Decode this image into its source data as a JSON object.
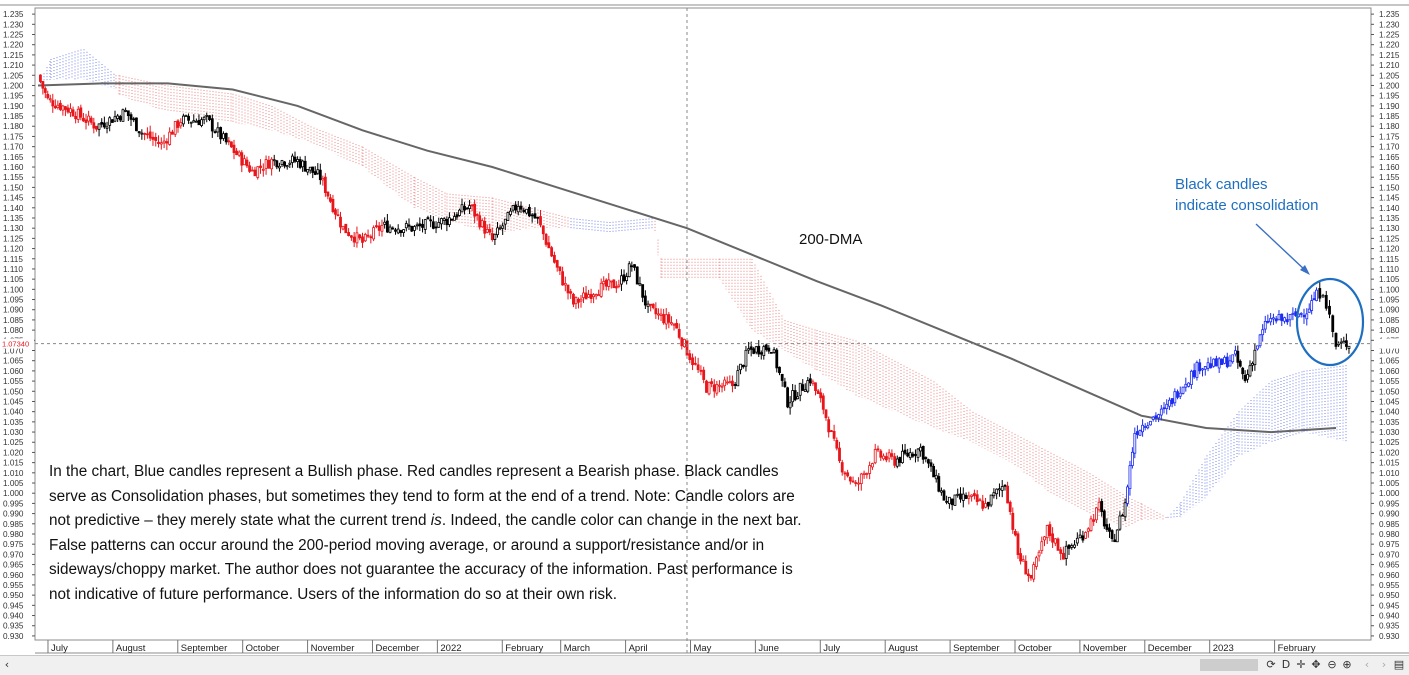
{
  "chart_data": {
    "type": "candlestick",
    "instrument_hint": "EUR/USD daily",
    "y_axis": {
      "ylim": [
        0.928,
        1.238
      ],
      "ticks": [
        "1.235",
        "1.230",
        "1.225",
        "1.220",
        "1.215",
        "1.210",
        "1.205",
        "1.200",
        "1.195",
        "1.190",
        "1.185",
        "1.180",
        "1.175",
        "1.170",
        "1.165",
        "1.160",
        "1.155",
        "1.150",
        "1.145",
        "1.140",
        "1.135",
        "1.130",
        "1.125",
        "1.120",
        "1.115",
        "1.110",
        "1.105",
        "1.100",
        "1.095",
        "1.090",
        "1.085",
        "1.080",
        "1.075",
        "1.070",
        "1.065",
        "1.060",
        "1.055",
        "1.050",
        "1.045",
        "1.040",
        "1.035",
        "1.030",
        "1.025",
        "1.020",
        "1.015",
        "1.010",
        "1.005",
        "1.000",
        "0.995",
        "0.990",
        "0.985",
        "0.980",
        "0.975",
        "0.970",
        "0.965",
        "0.960",
        "0.955",
        "0.950",
        "0.945",
        "0.940",
        "0.935",
        "0.930"
      ]
    },
    "current_price_label": "1.07340",
    "current_price": 1.0734,
    "x_axis": {
      "range_months": [
        0,
        20
      ],
      "labels": [
        {
          "text": "July",
          "m": 0.2
        },
        {
          "text": "August",
          "m": 1.2
        },
        {
          "text": "September",
          "m": 2.2
        },
        {
          "text": "October",
          "m": 3.2
        },
        {
          "text": "November",
          "m": 4.2
        },
        {
          "text": "December",
          "m": 5.2
        },
        {
          "text": "2022",
          "m": 6.2
        },
        {
          "text": "February",
          "m": 7.2
        },
        {
          "text": "March",
          "m": 8.1
        },
        {
          "text": "April",
          "m": 9.1
        },
        {
          "text": "May",
          "m": 10.1
        },
        {
          "text": "June",
          "m": 11.1
        },
        {
          "text": "July",
          "m": 12.1
        },
        {
          "text": "August",
          "m": 13.1
        },
        {
          "text": "September",
          "m": 14.1
        },
        {
          "text": "October",
          "m": 15.1
        },
        {
          "text": "November",
          "m": 16.1
        },
        {
          "text": "December",
          "m": 17.1
        },
        {
          "text": "2023",
          "m": 18.1
        },
        {
          "text": "February",
          "m": 19.1
        }
      ]
    },
    "candle_colors": {
      "bullish": "#1c2cf0",
      "bearish": "#e8161b",
      "consolidation": "#000000"
    },
    "price_path": [
      {
        "m": 0.0,
        "p": 1.205,
        "c": "bearish"
      },
      {
        "m": 0.15,
        "p": 1.193,
        "c": "bearish"
      },
      {
        "m": 0.5,
        "p": 1.188,
        "c": "bearish"
      },
      {
        "m": 0.9,
        "p": 1.18,
        "c": "bearish"
      },
      {
        "m": 1.35,
        "p": 1.187,
        "c": "consolidation"
      },
      {
        "m": 1.6,
        "p": 1.177,
        "c": "consolidation"
      },
      {
        "m": 1.9,
        "p": 1.171,
        "c": "bearish"
      },
      {
        "m": 2.2,
        "p": 1.183,
        "c": "bearish"
      },
      {
        "m": 2.6,
        "p": 1.183,
        "c": "consolidation"
      },
      {
        "m": 2.9,
        "p": 1.172,
        "c": "consolidation"
      },
      {
        "m": 3.3,
        "p": 1.158,
        "c": "bearish"
      },
      {
        "m": 3.6,
        "p": 1.163,
        "c": "bearish"
      },
      {
        "m": 4.0,
        "p": 1.163,
        "c": "consolidation"
      },
      {
        "m": 4.35,
        "p": 1.155,
        "c": "consolidation"
      },
      {
        "m": 4.7,
        "p": 1.13,
        "c": "bearish"
      },
      {
        "m": 5.0,
        "p": 1.123,
        "c": "bearish"
      },
      {
        "m": 5.3,
        "p": 1.131,
        "c": "bearish"
      },
      {
        "m": 5.8,
        "p": 1.13,
        "c": "consolidation"
      },
      {
        "m": 6.3,
        "p": 1.134,
        "c": "consolidation"
      },
      {
        "m": 6.65,
        "p": 1.141,
        "c": "consolidation"
      },
      {
        "m": 7.0,
        "p": 1.124,
        "c": "bearish"
      },
      {
        "m": 7.4,
        "p": 1.142,
        "c": "consolidation"
      },
      {
        "m": 7.7,
        "p": 1.134,
        "c": "consolidation"
      },
      {
        "m": 8.0,
        "p": 1.11,
        "c": "bearish"
      },
      {
        "m": 8.25,
        "p": 1.093,
        "c": "bearish"
      },
      {
        "m": 8.6,
        "p": 1.1,
        "c": "bearish"
      },
      {
        "m": 8.95,
        "p": 1.103,
        "c": "bearish"
      },
      {
        "m": 9.15,
        "p": 1.112,
        "c": "consolidation"
      },
      {
        "m": 9.4,
        "p": 1.09,
        "c": "consolidation"
      },
      {
        "m": 9.8,
        "p": 1.083,
        "c": "bearish"
      },
      {
        "m": 10.0,
        "p": 1.07,
        "c": "bearish"
      },
      {
        "m": 10.3,
        "p": 1.052,
        "c": "bearish"
      },
      {
        "m": 10.7,
        "p": 1.053,
        "c": "bearish"
      },
      {
        "m": 10.95,
        "p": 1.07,
        "c": "consolidation"
      },
      {
        "m": 11.3,
        "p": 1.072,
        "c": "consolidation"
      },
      {
        "m": 11.55,
        "p": 1.045,
        "c": "consolidation"
      },
      {
        "m": 11.9,
        "p": 1.056,
        "c": "consolidation"
      },
      {
        "m": 12.1,
        "p": 1.042,
        "c": "bearish"
      },
      {
        "m": 12.35,
        "p": 1.015,
        "c": "bearish"
      },
      {
        "m": 12.6,
        "p": 1.003,
        "c": "bearish"
      },
      {
        "m": 12.9,
        "p": 1.019,
        "c": "bearish"
      },
      {
        "m": 13.2,
        "p": 1.016,
        "c": "bearish"
      },
      {
        "m": 13.6,
        "p": 1.022,
        "c": "consolidation"
      },
      {
        "m": 14.0,
        "p": 0.995,
        "c": "consolidation"
      },
      {
        "m": 14.3,
        "p": 0.998,
        "c": "consolidation"
      },
      {
        "m": 14.6,
        "p": 0.994,
        "c": "bearish"
      },
      {
        "m": 14.9,
        "p": 1.005,
        "c": "consolidation"
      },
      {
        "m": 15.1,
        "p": 0.97,
        "c": "bearish"
      },
      {
        "m": 15.3,
        "p": 0.958,
        "c": "bearish"
      },
      {
        "m": 15.55,
        "p": 0.982,
        "c": "bearish"
      },
      {
        "m": 15.8,
        "p": 0.97,
        "c": "bearish"
      },
      {
        "m": 16.1,
        "p": 0.98,
        "c": "consolidation"
      },
      {
        "m": 16.35,
        "p": 0.993,
        "c": "bearish"
      },
      {
        "m": 16.55,
        "p": 0.975,
        "c": "consolidation"
      },
      {
        "m": 16.75,
        "p": 0.995,
        "c": "consolidation"
      },
      {
        "m": 16.9,
        "p": 1.03,
        "c": "bullish"
      },
      {
        "m": 17.1,
        "p": 1.036,
        "c": "bullish"
      },
      {
        "m": 17.35,
        "p": 1.04,
        "c": "bullish"
      },
      {
        "m": 17.6,
        "p": 1.052,
        "c": "bullish"
      },
      {
        "m": 17.9,
        "p": 1.063,
        "c": "bullish"
      },
      {
        "m": 18.2,
        "p": 1.063,
        "c": "bullish"
      },
      {
        "m": 18.45,
        "p": 1.067,
        "c": "bullish"
      },
      {
        "m": 18.6,
        "p": 1.055,
        "c": "consolidation"
      },
      {
        "m": 18.75,
        "p": 1.07,
        "c": "consolidation"
      },
      {
        "m": 18.95,
        "p": 1.085,
        "c": "bullish"
      },
      {
        "m": 19.25,
        "p": 1.085,
        "c": "bullish"
      },
      {
        "m": 19.55,
        "p": 1.09,
        "c": "bullish"
      },
      {
        "m": 19.7,
        "p": 1.097,
        "c": "bullish"
      },
      {
        "m": 19.8,
        "p": 1.1,
        "c": "consolidation"
      },
      {
        "m": 19.9,
        "p": 1.086,
        "c": "consolidation"
      },
      {
        "m": 20.0,
        "p": 1.072,
        "c": "consolidation"
      },
      {
        "m": 20.2,
        "p": 1.074,
        "c": "consolidation"
      }
    ],
    "dma200": [
      {
        "m": 0,
        "p": 1.2
      },
      {
        "m": 1,
        "p": 1.201
      },
      {
        "m": 2,
        "p": 1.201
      },
      {
        "m": 3,
        "p": 1.198
      },
      {
        "m": 4,
        "p": 1.19
      },
      {
        "m": 5,
        "p": 1.178
      },
      {
        "m": 6,
        "p": 1.168
      },
      {
        "m": 7,
        "p": 1.16
      },
      {
        "m": 8,
        "p": 1.15
      },
      {
        "m": 9,
        "p": 1.14
      },
      {
        "m": 10,
        "p": 1.13
      },
      {
        "m": 11,
        "p": 1.117
      },
      {
        "m": 12,
        "p": 1.104
      },
      {
        "m": 13,
        "p": 1.092
      },
      {
        "m": 14,
        "p": 1.079
      },
      {
        "m": 15,
        "p": 1.066
      },
      {
        "m": 16,
        "p": 1.052
      },
      {
        "m": 17,
        "p": 1.038
      },
      {
        "m": 18,
        "p": 1.032
      },
      {
        "m": 19,
        "p": 1.03
      },
      {
        "m": 20,
        "p": 1.032
      }
    ],
    "ichimoku_cloud": [
      {
        "m": 0.0,
        "a": 1.2,
        "b": 1.2,
        "c": "bearish"
      },
      {
        "m": 0.2,
        "a": 1.213,
        "b": 1.203,
        "c": "bullish"
      },
      {
        "m": 0.7,
        "a": 1.218,
        "b": 1.203,
        "c": "bullish"
      },
      {
        "m": 1.2,
        "a": 1.205,
        "b": 1.198,
        "c": "bullish"
      },
      {
        "m": 1.25,
        "a": 1.205,
        "b": 1.195,
        "c": "bearish"
      },
      {
        "m": 2.0,
        "a": 1.2,
        "b": 1.187,
        "c": "bearish"
      },
      {
        "m": 3.0,
        "a": 1.196,
        "b": 1.182,
        "c": "bearish"
      },
      {
        "m": 3.6,
        "a": 1.19,
        "b": 1.178,
        "c": "bearish"
      },
      {
        "m": 4.2,
        "a": 1.18,
        "b": 1.172,
        "c": "bearish"
      },
      {
        "m": 5.0,
        "a": 1.17,
        "b": 1.16,
        "c": "bearish"
      },
      {
        "m": 5.8,
        "a": 1.155,
        "b": 1.14,
        "c": "bearish"
      },
      {
        "m": 6.3,
        "a": 1.147,
        "b": 1.134,
        "c": "bearish"
      },
      {
        "m": 7.0,
        "a": 1.145,
        "b": 1.127,
        "c": "bearish"
      },
      {
        "m": 7.6,
        "a": 1.14,
        "b": 1.13,
        "c": "bearish"
      },
      {
        "m": 8.2,
        "a": 1.135,
        "b": 1.13,
        "c": "bearish"
      },
      {
        "m": 8.8,
        "a": 1.133,
        "b": 1.128,
        "c": "bullish"
      },
      {
        "m": 9.5,
        "a": 1.135,
        "b": 1.13,
        "c": "bullish"
      },
      {
        "m": 9.6,
        "a": 1.115,
        "b": 1.105,
        "c": "bearish"
      },
      {
        "m": 10.5,
        "a": 1.115,
        "b": 1.105,
        "c": "bearish"
      },
      {
        "m": 11.0,
        "a": 1.115,
        "b": 1.08,
        "c": "bearish"
      },
      {
        "m": 11.5,
        "a": 1.085,
        "b": 1.07,
        "c": "bearish"
      },
      {
        "m": 12.0,
        "a": 1.08,
        "b": 1.06,
        "c": "bearish"
      },
      {
        "m": 12.6,
        "a": 1.075,
        "b": 1.048,
        "c": "bearish"
      },
      {
        "m": 13.2,
        "a": 1.065,
        "b": 1.04,
        "c": "bearish"
      },
      {
        "m": 13.8,
        "a": 1.055,
        "b": 1.032,
        "c": "bearish"
      },
      {
        "m": 14.4,
        "a": 1.04,
        "b": 1.025,
        "c": "bearish"
      },
      {
        "m": 15.0,
        "a": 1.03,
        "b": 1.015,
        "c": "bearish"
      },
      {
        "m": 15.6,
        "a": 1.02,
        "b": 1.0,
        "c": "bearish"
      },
      {
        "m": 16.2,
        "a": 1.01,
        "b": 0.99,
        "c": "bearish"
      },
      {
        "m": 16.8,
        "a": 0.998,
        "b": 0.983,
        "c": "bearish"
      },
      {
        "m": 17.0,
        "a": 0.995,
        "b": 0.987,
        "c": "bearish"
      },
      {
        "m": 17.4,
        "a": 0.988,
        "b": 0.987,
        "c": "bearish"
      },
      {
        "m": 17.6,
        "a": 0.995,
        "b": 0.988,
        "c": "bullish"
      },
      {
        "m": 18.0,
        "a": 1.018,
        "b": 0.998,
        "c": "bullish"
      },
      {
        "m": 18.5,
        "a": 1.04,
        "b": 1.018,
        "c": "bullish"
      },
      {
        "m": 19.0,
        "a": 1.055,
        "b": 1.025,
        "c": "bullish"
      },
      {
        "m": 19.5,
        "a": 1.06,
        "b": 1.03,
        "c": "bullish"
      },
      {
        "m": 20.2,
        "a": 1.063,
        "b": 1.025,
        "c": "bullish"
      }
    ],
    "dma_label": "200-DMA",
    "callout_text_line1": "Black candles",
    "callout_text_line2": "indicate consolidation",
    "callout_color": "#1f6fc1",
    "crosshair": {
      "m": 10.0,
      "p": 1.0734
    }
  },
  "note": {
    "line_before_italic": "In the chart, Blue candles represent a Bullish phase. Red candles represent a Bearish phase. Black candles serve as Consolidation phases, but sometimes they tend to form at the end of a trend. Note: Candle colors are not predictive – they merely state what the current trend ",
    "italic_word": "is",
    "line_after_italic": ". Indeed, the candle color can change in the next bar. False patterns can occur around the 200-period moving average, or around a support/resistance and/or in sideways/choppy market. The author does not guarantee the accuracy of the information. Past performance is not indicative of future performance. Users of the information do so at their own risk."
  },
  "status_bar": {
    "left_arrow": "‹",
    "right_arrow": "›",
    "d_label": "D",
    "right_edge_label": "M"
  }
}
